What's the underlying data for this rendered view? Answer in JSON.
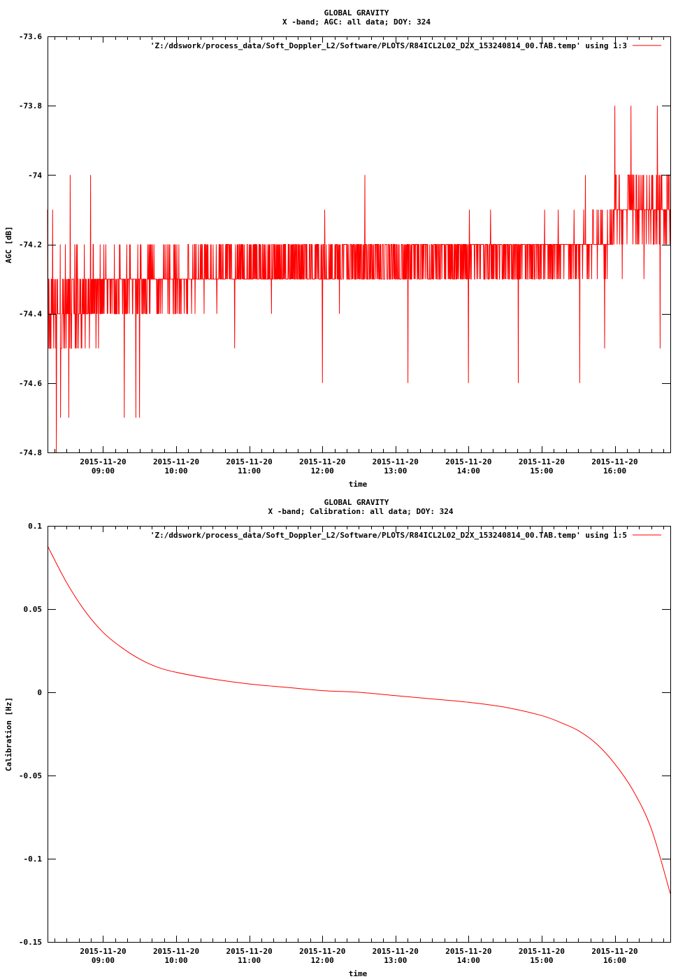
{
  "charts": [
    {
      "title": "GLOBAL GRAVITY",
      "subtitle": "X -band; AGC: all data; DOY: 324",
      "xlabel": "time",
      "ylabel": "AGC [dB]",
      "legend_label": "'Z:/ddswork/process_data/Soft_Doppler_L2/Software/PLOTS/R84ICL2L02_D2X_153240814_00.TAB.temp' using 1:3"
    },
    {
      "title": "GLOBAL GRAVITY",
      "subtitle": "X -band; Calibration: all data; DOY: 324",
      "xlabel": "time",
      "ylabel": "Calibration [Hz]",
      "legend_label": "'Z:/ddswork/process_data/Soft_Doppler_L2/Software/PLOTS/R84ICL2L02_D2X_153240814_00.TAB.temp' using 1:5"
    }
  ],
  "chart_data": [
    {
      "type": "line",
      "title": "GLOBAL GRAVITY",
      "subtitle": "X -band; AGC: all data; DOY: 324",
      "xlabel": "time",
      "ylabel": "AGC [dB]",
      "x_unit": "hour of day 2015-11-20",
      "xlim": [
        8.24,
        16.76
      ],
      "ylim": [
        -74.8,
        -73.6
      ],
      "x_ticks": [
        9,
        10,
        11,
        12,
        13,
        14,
        15,
        16
      ],
      "x_tick_labels": [
        [
          "2015-11-20",
          "09:00"
        ],
        [
          "2015-11-20",
          "10:00"
        ],
        [
          "2015-11-20",
          "11:00"
        ],
        [
          "2015-11-20",
          "12:00"
        ],
        [
          "2015-11-20",
          "13:00"
        ],
        [
          "2015-11-20",
          "14:00"
        ],
        [
          "2015-11-20",
          "15:00"
        ],
        [
          "2015-11-20",
          "16:00"
        ]
      ],
      "y_ticks": [
        -73.6,
        -73.8,
        -74,
        -74.2,
        -74.4,
        -74.6,
        -74.8
      ],
      "y_tick_labels": [
        "-73.6",
        "-73.8",
        "-74",
        "-74.2",
        "-74.4",
        "-74.6",
        "-74.8"
      ],
      "grid": false,
      "legend_position": "top-right",
      "series": [
        {
          "color": "#ff0000",
          "step": 0.1,
          "levels": [
            [
              8.24,
              -74.4
            ],
            [
              8.5,
              -74.4
            ],
            [
              8.75,
              -74.35
            ],
            [
              9.0,
              -74.35
            ],
            [
              9.25,
              -74.32
            ],
            [
              9.5,
              -74.32
            ],
            [
              9.75,
              -74.3
            ],
            [
              10.0,
              -74.3
            ],
            [
              10.25,
              -74.28
            ],
            [
              10.5,
              -74.27
            ],
            [
              11.0,
              -74.27
            ],
            [
              11.5,
              -74.26
            ],
            [
              12.0,
              -74.26
            ],
            [
              12.5,
              -74.25
            ],
            [
              13.0,
              -74.25
            ],
            [
              13.5,
              -74.24
            ],
            [
              14.0,
              -74.24
            ],
            [
              14.5,
              -74.23
            ],
            [
              15.0,
              -74.22
            ],
            [
              15.5,
              -74.21
            ],
            [
              15.9,
              -74.2
            ],
            [
              16.0,
              -74.1
            ],
            [
              16.3,
              -74.08
            ],
            [
              16.6,
              -74.08
            ],
            [
              16.76,
              -74.1
            ]
          ],
          "spread": [
            [
              8.24,
              0.12
            ],
            [
              8.6,
              0.12
            ],
            [
              9.0,
              0.08
            ],
            [
              9.5,
              0.07
            ],
            [
              10.0,
              0.06
            ],
            [
              11.0,
              0.05
            ],
            [
              13.0,
              0.05
            ],
            [
              15.0,
              0.05
            ],
            [
              15.9,
              0.06
            ],
            [
              16.3,
              0.08
            ],
            [
              16.76,
              0.08
            ]
          ],
          "extremes": [
            [
              8.36,
              -74.8
            ],
            [
              8.23,
              -74.1
            ],
            [
              8.27,
              -74.5
            ],
            [
              8.42,
              -74.7
            ],
            [
              8.53,
              -74.7
            ],
            [
              8.31,
              -74.1
            ],
            [
              8.55,
              -74.0
            ],
            [
              8.83,
              -74.0
            ],
            [
              9.29,
              -74.7
            ],
            [
              9.45,
              -74.7
            ],
            [
              9.5,
              -74.7
            ],
            [
              12.0,
              -74.6
            ],
            [
              12.03,
              -74.1
            ],
            [
              12.58,
              -74.0
            ],
            [
              13.17,
              -74.6
            ],
            [
              14.0,
              -74.6
            ],
            [
              14.68,
              -74.6
            ],
            [
              15.52,
              -74.6
            ],
            [
              15.6,
              -74.0
            ],
            [
              15.86,
              -74.5
            ],
            [
              16.0,
              -73.8
            ],
            [
              16.22,
              -73.8
            ],
            [
              16.58,
              -73.8
            ],
            [
              16.62,
              -74.5
            ],
            [
              16.4,
              -74.3
            ],
            [
              16.1,
              -74.3
            ],
            [
              10.8,
              -74.5
            ]
          ]
        }
      ]
    },
    {
      "type": "line",
      "title": "GLOBAL GRAVITY",
      "subtitle": "X -band; Calibration: all data; DOY: 324",
      "xlabel": "time",
      "ylabel": "Calibration [Hz]",
      "x_unit": "hour of day 2015-11-20",
      "xlim": [
        8.24,
        16.76
      ],
      "ylim": [
        -0.15,
        0.1
      ],
      "x_ticks": [
        9,
        10,
        11,
        12,
        13,
        14,
        15,
        16
      ],
      "x_tick_labels": [
        [
          "2015-11-20",
          "09:00"
        ],
        [
          "2015-11-20",
          "10:00"
        ],
        [
          "2015-11-20",
          "11:00"
        ],
        [
          "2015-11-20",
          "12:00"
        ],
        [
          "2015-11-20",
          "13:00"
        ],
        [
          "2015-11-20",
          "14:00"
        ],
        [
          "2015-11-20",
          "15:00"
        ],
        [
          "2015-11-20",
          "16:00"
        ]
      ],
      "y_ticks": [
        0.1,
        0.05,
        0,
        -0.05,
        -0.1,
        -0.15
      ],
      "y_tick_labels": [
        "0.1",
        "0.05",
        "0",
        "-0.05",
        "-0.1",
        "-0.15"
      ],
      "grid": false,
      "legend_position": "top-right",
      "series": [
        {
          "color": "#ff0000",
          "x": [
            8.24,
            8.5,
            8.75,
            9.0,
            9.25,
            9.5,
            9.75,
            10.0,
            10.5,
            11.0,
            11.5,
            12.0,
            12.5,
            13.0,
            13.5,
            14.0,
            14.5,
            15.0,
            15.25,
            15.5,
            15.75,
            16.0,
            16.25,
            16.5,
            16.76
          ],
          "values": [
            0.088,
            0.066,
            0.049,
            0.036,
            0.027,
            0.02,
            0.015,
            0.012,
            0.008,
            0.005,
            0.003,
            0.001,
            0.0,
            -0.002,
            -0.004,
            -0.006,
            -0.009,
            -0.014,
            -0.018,
            -0.023,
            -0.031,
            -0.043,
            -0.059,
            -0.082,
            -0.121
          ]
        }
      ]
    }
  ]
}
